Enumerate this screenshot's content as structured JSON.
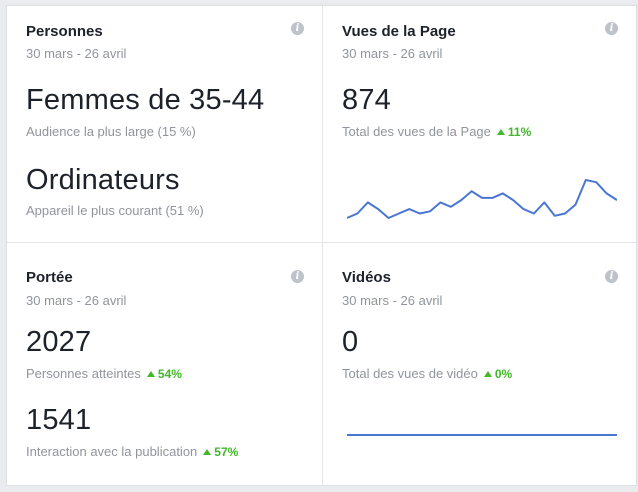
{
  "cards": {
    "people": {
      "title": "Personnes",
      "date": "30 mars - 26 avril",
      "metric1_value": "Femmes de 35-44",
      "metric1_label": "Audience la plus large (15 %)",
      "metric2_value": "Ordinateurs",
      "metric2_label": "Appareil le plus courant (51 %)"
    },
    "page_views": {
      "title": "Vues de la Page",
      "date": "30 mars - 26 avril",
      "value": "874",
      "label": "Total des vues de la Page",
      "delta": "11%"
    },
    "reach": {
      "title": "Portée",
      "date": "30 mars - 26 avril",
      "value1": "2027",
      "label1": "Personnes atteintes",
      "delta1": "54%",
      "value2": "1541",
      "label2": "Interaction avec la publication",
      "delta2": "57%"
    },
    "videos": {
      "title": "Vidéos",
      "date": "30 mars - 26 avril",
      "value": "0",
      "label": "Total des vues de vidéo",
      "delta": "0%"
    }
  },
  "info_icon_glyph": "i",
  "colors": {
    "sparkline": "#4a76d2",
    "positive": "#42b72a"
  },
  "sparklines": {
    "page_views": [
      2,
      4,
      9,
      6,
      2,
      4,
      6,
      4,
      5,
      9,
      7,
      10,
      14,
      11,
      11,
      13,
      10,
      6,
      4,
      9,
      3,
      4,
      8,
      19,
      18,
      13,
      10
    ],
    "videos": [
      0,
      0
    ]
  }
}
